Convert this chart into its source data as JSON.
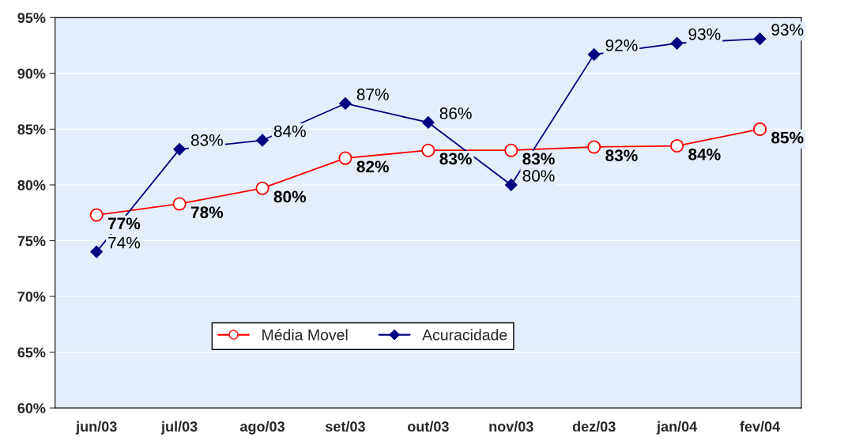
{
  "chart_data": {
    "type": "line",
    "categories": [
      "jun/03",
      "jul/03",
      "ago/03",
      "set/03",
      "out/03",
      "nov/03",
      "dez/03",
      "jan/04",
      "fev/04"
    ],
    "series": [
      {
        "name": "Média Movel",
        "color": "#ff0000",
        "marker": "circle",
        "values": [
          77.3,
          78.3,
          79.7,
          82.4,
          83.1,
          83.1,
          83.4,
          83.5,
          85.0
        ],
        "value_labels": [
          "77%",
          "78%",
          "80%",
          "82%",
          "83%",
          "83%",
          "83%",
          "84%",
          "85%"
        ]
      },
      {
        "name": "Acuracidade",
        "color": "#000080",
        "marker": "diamond",
        "values": [
          74.0,
          83.2,
          84.0,
          87.3,
          85.6,
          80.0,
          91.7,
          92.7,
          93.1
        ],
        "value_labels": [
          "74%",
          "83%",
          "84%",
          "87%",
          "86%",
          "80%",
          "92%",
          "93%",
          "93%"
        ]
      }
    ],
    "ylim": [
      60,
      95
    ],
    "yticks": [
      {
        "value": 60,
        "label": "60%"
      },
      {
        "value": 65,
        "label": "65%"
      },
      {
        "value": 70,
        "label": "70%"
      },
      {
        "value": 75,
        "label": "75%"
      },
      {
        "value": 80,
        "label": "80%"
      },
      {
        "value": 85,
        "label": "85%"
      },
      {
        "value": 90,
        "label": "90%"
      },
      {
        "value": 95,
        "label": "95%"
      }
    ],
    "grid": "y",
    "legend": "bottom left"
  }
}
